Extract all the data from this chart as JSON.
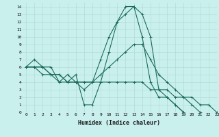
{
  "xlabel": "Humidex (Indice chaleur)",
  "bg_color": "#caf0ee",
  "grid_color": "#aad8cc",
  "line_color": "#1a6b5a",
  "xlim": [
    -0.5,
    23
  ],
  "ylim": [
    0,
    14.5
  ],
  "xtick_labels": [
    "0",
    "1",
    "2",
    "3",
    "4",
    "5",
    "6",
    "7",
    "8",
    "9",
    "10",
    "11",
    "12",
    "13",
    "14",
    "15",
    "16",
    "17",
    "18",
    "19",
    "20",
    "21",
    "22",
    "23"
  ],
  "ytick_labels": [
    "0",
    "1",
    "2",
    "3",
    "4",
    "5",
    "6",
    "7",
    "8",
    "9",
    "10",
    "11",
    "12",
    "13",
    "14"
  ],
  "s1_x": [
    0,
    1,
    2,
    3,
    4,
    5,
    6,
    7,
    8,
    9,
    10,
    11,
    12,
    13,
    14,
    15,
    16,
    17,
    18,
    19
  ],
  "s1_y": [
    6,
    7,
    6,
    6,
    4,
    4,
    5,
    1,
    1,
    4,
    8,
    12,
    14,
    14,
    10,
    4,
    2,
    2,
    1,
    0
  ],
  "s2_x": [
    0,
    1,
    2,
    3,
    4,
    5,
    6,
    7,
    8,
    9,
    10,
    11,
    12,
    13,
    14,
    15,
    16,
    17,
    18,
    19
  ],
  "s2_y": [
    6,
    6,
    6,
    5,
    4,
    5,
    4,
    3,
    4,
    7,
    10,
    12,
    13,
    14,
    13,
    10,
    3,
    2,
    1,
    0
  ],
  "s3_x": [
    0,
    1,
    2,
    3,
    4,
    5,
    6,
    7,
    8,
    9,
    10,
    11,
    12,
    13,
    14,
    15,
    16,
    17,
    18,
    19,
    20,
    21
  ],
  "s3_y": [
    6,
    6,
    6,
    5,
    5,
    4,
    4,
    4,
    4,
    5,
    6,
    7,
    8,
    9,
    9,
    7,
    5,
    4,
    3,
    2,
    1,
    0
  ],
  "s4_x": [
    0,
    1,
    2,
    3,
    4,
    5,
    6,
    7,
    8,
    9,
    10,
    11,
    12,
    13,
    14,
    15,
    16,
    17,
    18,
    19,
    20,
    21,
    22,
    23
  ],
  "s4_y": [
    6,
    6,
    5,
    5,
    5,
    4,
    4,
    4,
    4,
    4,
    4,
    4,
    4,
    4,
    4,
    3,
    3,
    3,
    2,
    2,
    2,
    1,
    1,
    0
  ],
  "xlabel_fontsize": 6,
  "tick_fontsize": 4.5
}
